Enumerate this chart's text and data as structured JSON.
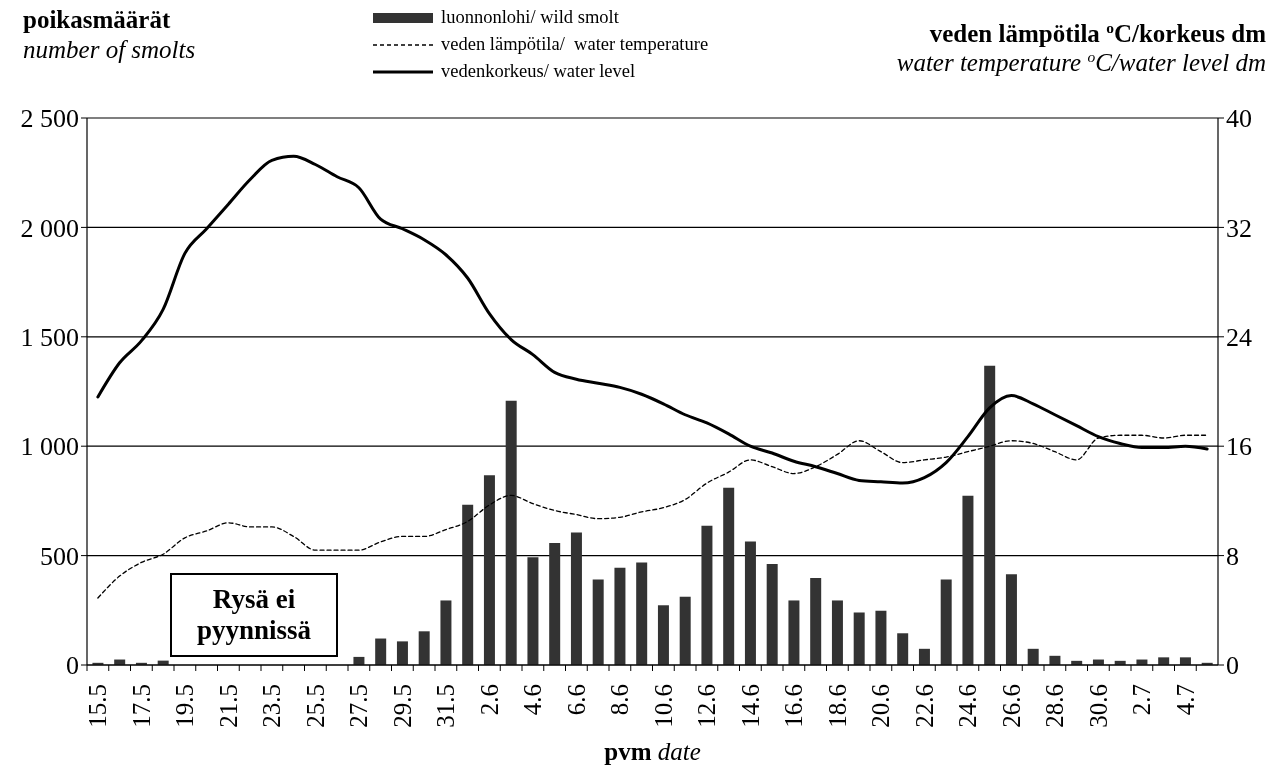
{
  "chart_data": {
    "type": "bar",
    "ylabel": "poikasmäärät\nnumber of smolts",
    "y2label": "veden lämpötila $^{o}$C/korkeus dm\nwater temperature $^{o}$C/water level dm",
    "xlabel": "pvm date",
    "annotations": [
      "Rysä ei pyynnissä"
    ],
    "categories": [
      "15.5",
      null,
      "17.5",
      null,
      "19.5",
      null,
      "21.5",
      null,
      "23.5",
      null,
      "25.5",
      null,
      "27.5",
      null,
      "29.5",
      null,
      "31.5",
      null,
      "2.6",
      null,
      "4.6",
      null,
      "6.6",
      null,
      "8.6",
      null,
      "10.6",
      null,
      "12.6",
      null,
      "14.6",
      null,
      "16.6",
      null,
      "18.6",
      null,
      "20.6",
      null,
      "22.6",
      null,
      "24.6",
      null,
      "26.6",
      null,
      "28.6",
      null,
      "30.6",
      null,
      "2.7",
      null,
      "4.7",
      null
    ],
    "series": [
      {
        "name": "luonnonlohi/ wild smolt",
        "color": "#333333",
        "values": [
          10,
          25,
          10,
          20,
          null,
          null,
          null,
          null,
          null,
          null,
          null,
          null,
          37,
          121,
          108,
          154,
          295,
          732,
          867,
          1208,
          493,
          558,
          606,
          391,
          445,
          469,
          273,
          312,
          636,
          810,
          565,
          462,
          295,
          398,
          295,
          240,
          248,
          145,
          74,
          391,
          773,
          1368,
          415,
          74,
          42,
          19,
          25,
          19,
          25,
          35,
          35,
          10
        ]
      },
      {
        "name": "veden lämpötila/  water temperature",
        "type": "line",
        "axis": "y2",
        "line_style": "dashed",
        "color": "#000000",
        "values": [
          4.9,
          6.5,
          7.5,
          8.1,
          9.3,
          9.8,
          10.4,
          10.1,
          10.1,
          9.4,
          8.4,
          8.4,
          8.4,
          9.0,
          9.4,
          9.4,
          9.9,
          10.5,
          11.7,
          12.4,
          11.8,
          11.3,
          11.0,
          10.7,
          10.8,
          11.2,
          11.5,
          12.1,
          13.3,
          14.1,
          15.0,
          14.5,
          14.0,
          14.5,
          15.4,
          16.4,
          15.6,
          14.8,
          15.0,
          15.2,
          15.6,
          16.0,
          16.4,
          16.2,
          15.6,
          15.0,
          16.6,
          16.8,
          16.8,
          16.6,
          16.8,
          16.8
        ]
      },
      {
        "name": "vedenkorkeus/ water level",
        "type": "line",
        "axis": "y2",
        "line_style": "solid",
        "color": "#000000",
        "values": [
          19.6,
          22.1,
          23.7,
          26.0,
          30.1,
          31.9,
          33.7,
          35.5,
          36.9,
          37.2,
          36.6,
          35.7,
          34.9,
          32.6,
          31.9,
          31.1,
          30.0,
          28.3,
          25.7,
          23.8,
          22.7,
          21.4,
          20.9,
          20.6,
          20.3,
          19.8,
          19.1,
          18.3,
          17.7,
          16.9,
          16.0,
          15.5,
          14.9,
          14.5,
          14.0,
          13.5,
          13.4,
          13.3,
          13.7,
          14.8,
          16.7,
          18.8,
          19.7,
          19.1,
          18.3,
          17.5,
          16.7,
          16.2,
          15.9,
          15.9,
          16.0,
          15.8
        ]
      }
    ],
    "ylim": [
      0,
      2500
    ],
    "yticks": [
      0,
      500,
      {
        "value": 1000,
        "label": "1 000"
      },
      {
        "value": 1500,
        "label": "1 500"
      },
      {
        "value": 2000,
        "label": "2 000"
      },
      {
        "value": 2500,
        "label": "2 500"
      }
    ],
    "y2lim": [
      0,
      40
    ],
    "y2ticks": [
      0,
      8,
      16,
      24,
      32,
      40
    ],
    "grid": "y",
    "legend": "top"
  }
}
